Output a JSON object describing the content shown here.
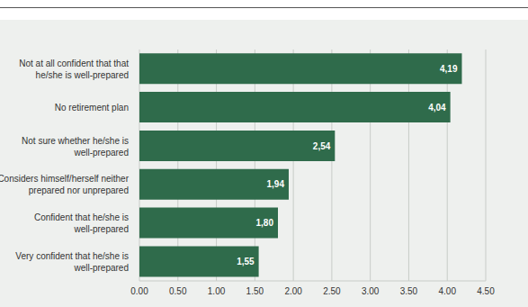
{
  "chart_data": {
    "type": "bar",
    "orientation": "horizontal",
    "categories": [
      "Not at all confident that that he/she is well-prepared",
      "No retirement plan",
      "Not sure whether he/she is well-prepared",
      "Considers himself/herself neither prepared nor unprepared",
      "Confident that he/she is well-prepared",
      "Very confident that he/she is well-prepared"
    ],
    "values": [
      4.19,
      4.04,
      2.54,
      1.94,
      1.8,
      1.55
    ],
    "value_labels": [
      "4,19",
      "4,04",
      "2,54",
      "1,94",
      "1,80",
      "1,55"
    ],
    "data_labels": true,
    "color": "#2f6b4b",
    "xlim": [
      0,
      4.5
    ],
    "xticks": [
      {
        "value": 0,
        "label": "0.00"
      },
      {
        "value": 0.5,
        "label": "0.50"
      },
      {
        "value": 1,
        "label": "1.00"
      },
      {
        "value": 1.5,
        "label": "1.50"
      },
      {
        "value": 2,
        "label": "2.00"
      },
      {
        "value": 2.5,
        "label": "2.50"
      },
      {
        "value": 3,
        "label": "3.00"
      },
      {
        "value": 3.5,
        "label": "3.50"
      },
      {
        "value": 4,
        "label": "4.00"
      },
      {
        "value": 4.5,
        "label": "4.50"
      }
    ],
    "grid": true
  }
}
